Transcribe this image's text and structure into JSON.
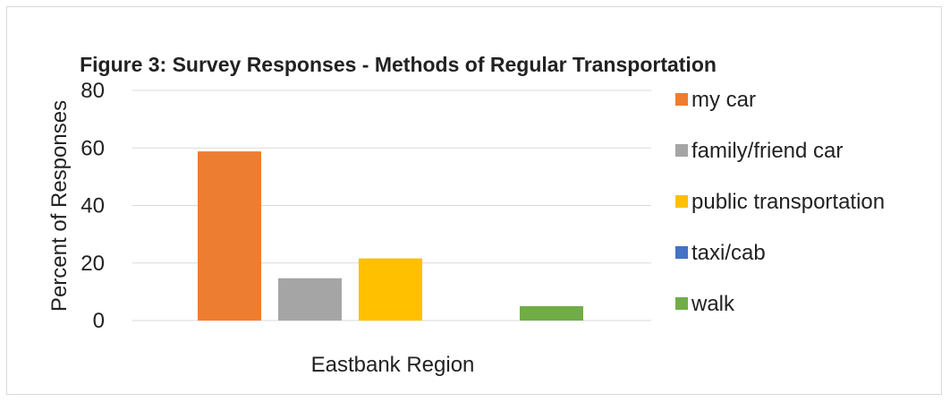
{
  "chart_data": {
    "type": "bar",
    "title": "Figure 3: Survey Responses - Methods of Regular Transportation",
    "ylabel": "Percent of Responses",
    "xlabel": "Eastbank Region",
    "categories": [
      "Eastbank Region"
    ],
    "ylim": [
      0,
      80
    ],
    "yticks": [
      0,
      20,
      40,
      60,
      80
    ],
    "grid": true,
    "legend_position": "right",
    "series": [
      {
        "name": "my car",
        "values": [
          58.8
        ],
        "color": "#ED7D31"
      },
      {
        "name": "family/friend car",
        "values": [
          14.7
        ],
        "color": "#A5A5A5"
      },
      {
        "name": "public transportation",
        "values": [
          21.6
        ],
        "color": "#FFC000"
      },
      {
        "name": "taxi/cab",
        "values": [
          0
        ],
        "color": "#4472C4"
      },
      {
        "name": "walk",
        "values": [
          5.0
        ],
        "color": "#70AD47"
      }
    ]
  }
}
